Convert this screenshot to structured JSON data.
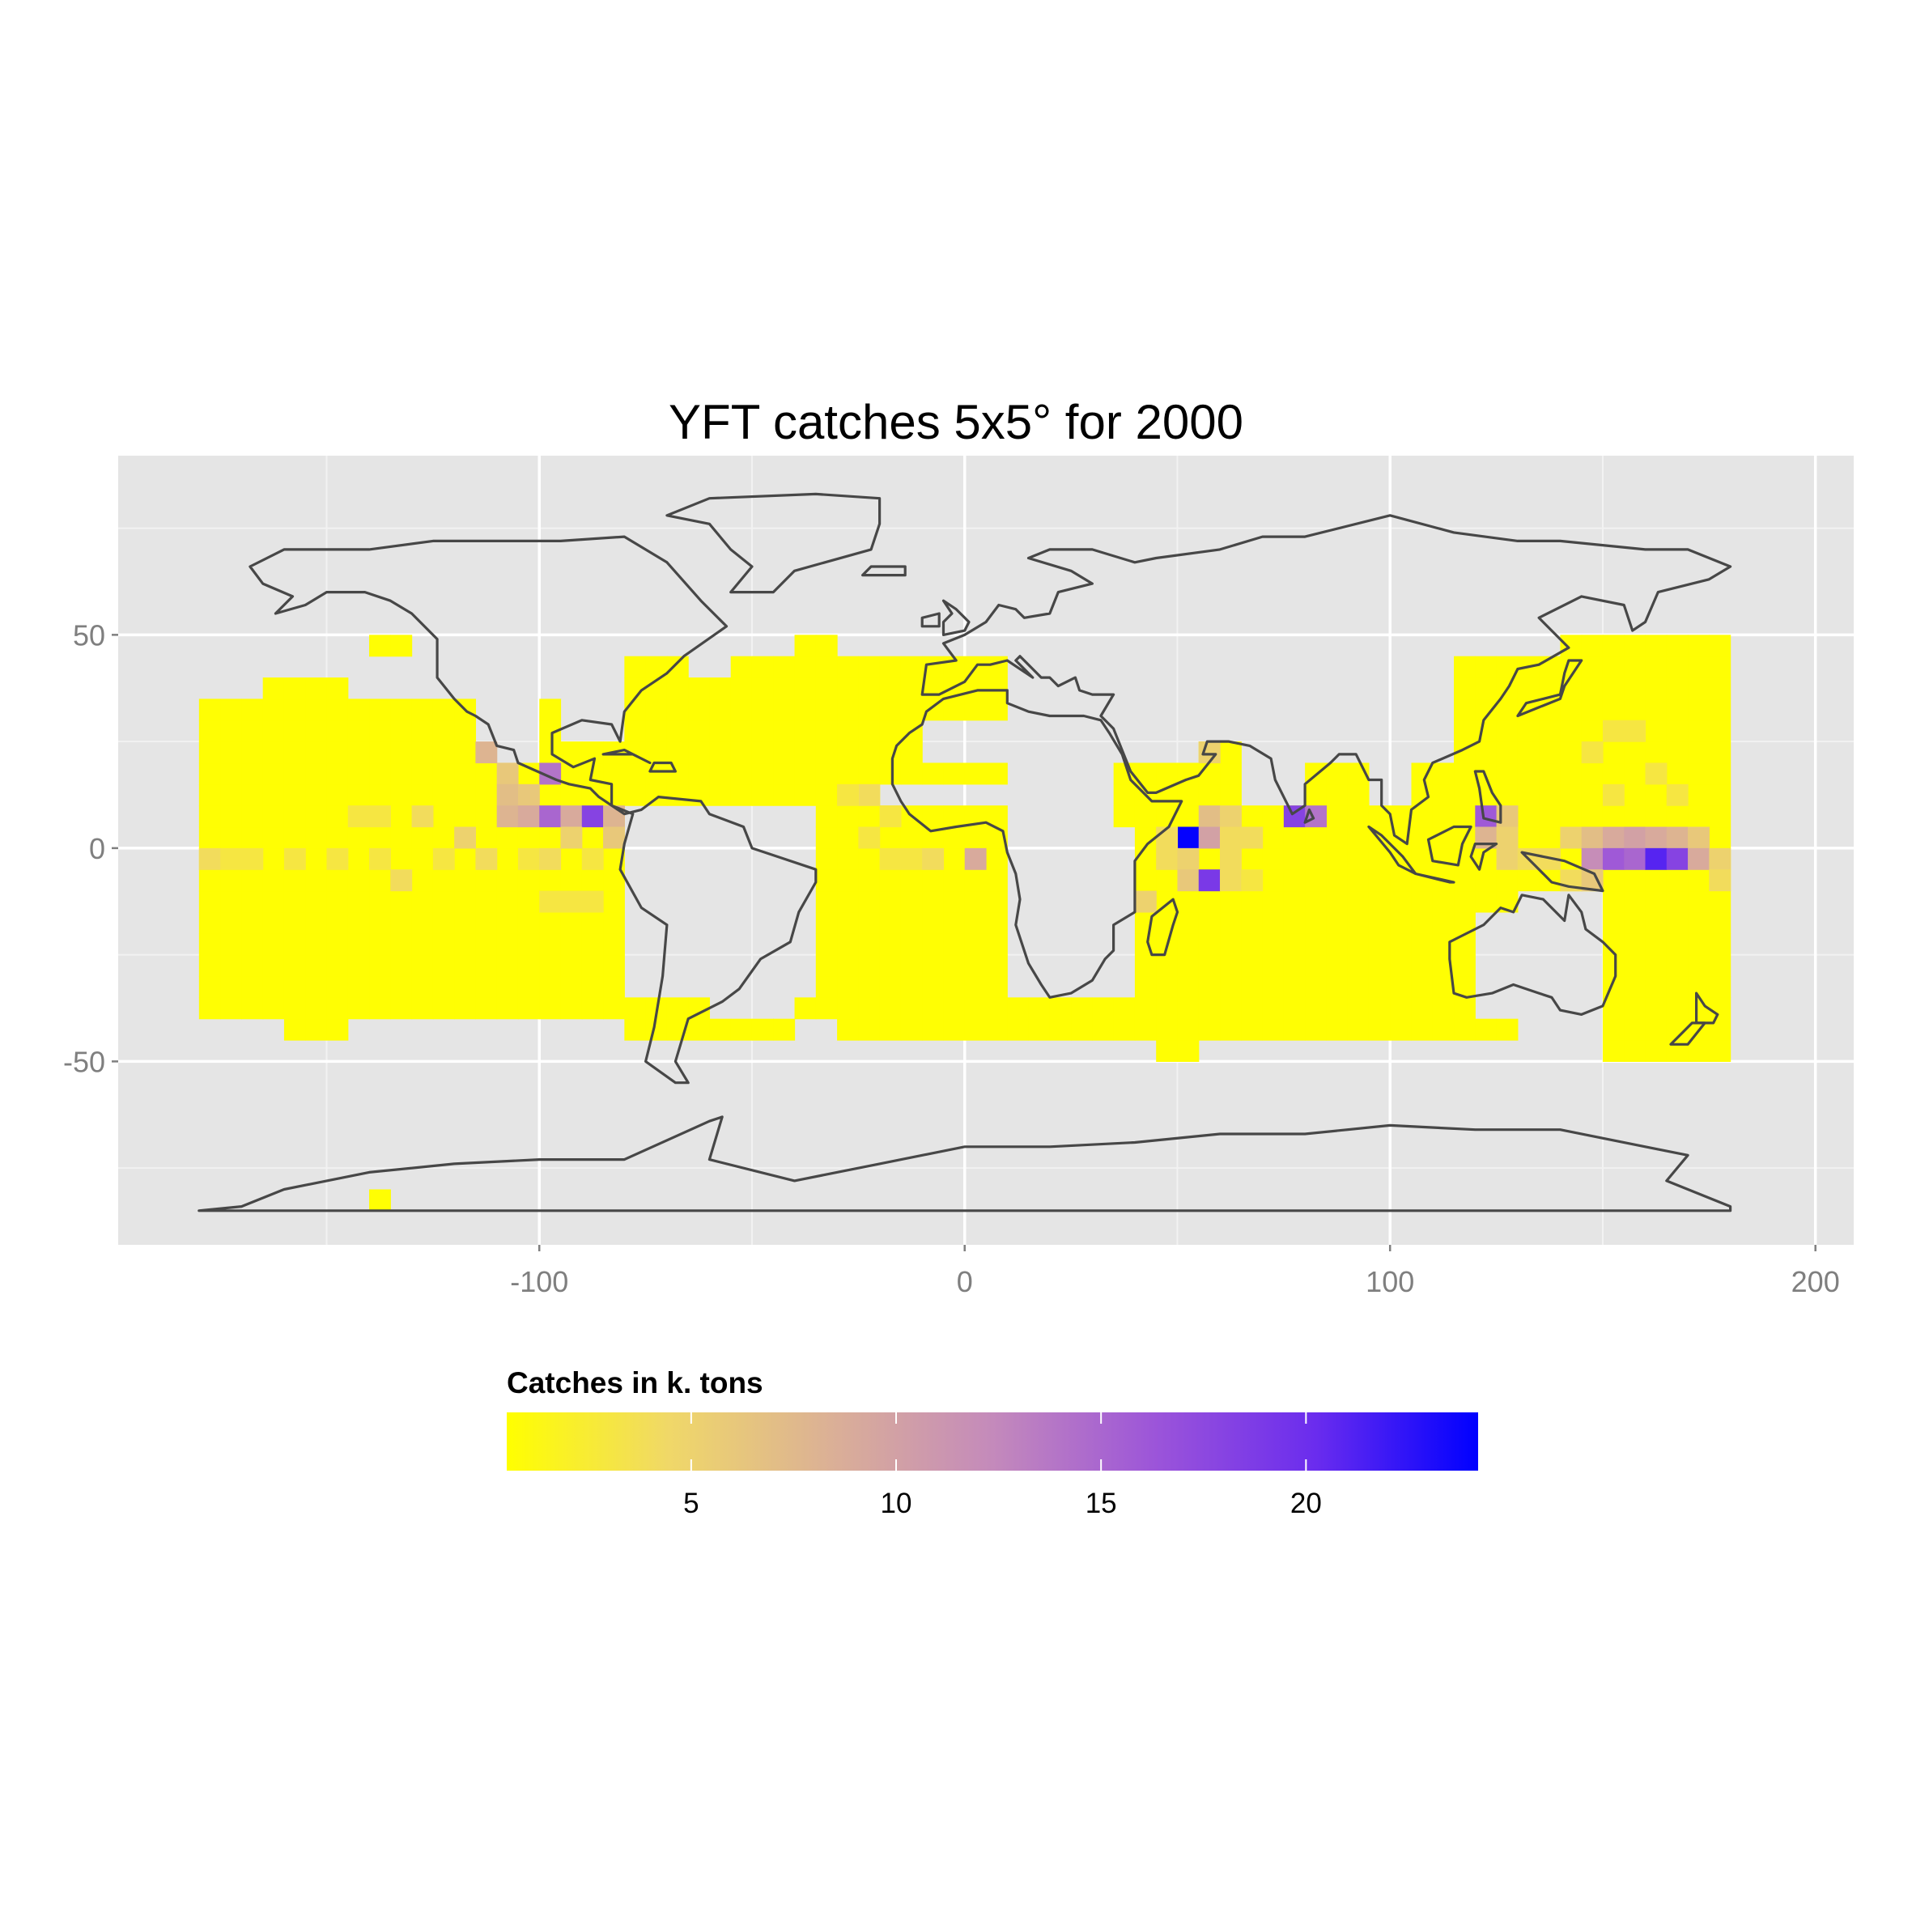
{
  "title": "YFT catches 5x5° for 2000",
  "legend": {
    "title": "Catches in k. tons",
    "breaks": [
      5,
      10,
      15,
      20
    ],
    "min": 0.5,
    "max": 24.2,
    "colors": [
      "#FFFF00",
      "#F0D868",
      "#DBB096",
      "#C48ABB",
      "#9C55D9",
      "#6A2CEE",
      "#0000FF"
    ]
  },
  "chart_data": {
    "type": "heatmap",
    "title": "YFT catches 5x5° for 2000",
    "xlabel": "",
    "ylabel": "",
    "x_ticks": [
      -100,
      0,
      100,
      200
    ],
    "y_ticks": [
      -50,
      0,
      50
    ],
    "xlim": [
      -199,
      209
    ],
    "ylim": [
      -93,
      92
    ],
    "grid": true,
    "legend_position": "bottom",
    "cell_size_deg": 5,
    "background_level": 0.6,
    "cells": [
      {
        "lon": -112.5,
        "lat": 22.5,
        "value": 8
      },
      {
        "lon": -107.5,
        "lat": 17.5,
        "value": 6
      },
      {
        "lon": -97.5,
        "lat": 17.5,
        "value": 14
      },
      {
        "lon": -107.5,
        "lat": 12.5,
        "value": 7
      },
      {
        "lon": -102.5,
        "lat": 12.5,
        "value": 6
      },
      {
        "lon": -107.5,
        "lat": 7.5,
        "value": 8
      },
      {
        "lon": -102.5,
        "lat": 7.5,
        "value": 9
      },
      {
        "lon": -97.5,
        "lat": 7.5,
        "value": 15
      },
      {
        "lon": -92.5,
        "lat": 7.5,
        "value": 9
      },
      {
        "lon": -87.5,
        "lat": 7.5,
        "value": 18
      },
      {
        "lon": -82.5,
        "lat": 7.5,
        "value": 8
      },
      {
        "lon": -82.5,
        "lat": 2.5,
        "value": 6
      },
      {
        "lon": -92.5,
        "lat": 2.5,
        "value": 5
      },
      {
        "lon": -117.5,
        "lat": 2.5,
        "value": 5
      },
      {
        "lon": -127.5,
        "lat": 7.5,
        "value": 4
      },
      {
        "lon": -137.5,
        "lat": 7.5,
        "value": 3
      },
      {
        "lon": -142.5,
        "lat": 7.5,
        "value": 3
      },
      {
        "lon": -177.5,
        "lat": -2.5,
        "value": 4
      },
      {
        "lon": -172.5,
        "lat": -2.5,
        "value": 3
      },
      {
        "lon": -167.5,
        "lat": -2.5,
        "value": 3
      },
      {
        "lon": -157.5,
        "lat": -2.5,
        "value": 3
      },
      {
        "lon": -147.5,
        "lat": -2.5,
        "value": 3
      },
      {
        "lon": -137.5,
        "lat": -2.5,
        "value": 3
      },
      {
        "lon": -132.5,
        "lat": -7.5,
        "value": 4
      },
      {
        "lon": -122.5,
        "lat": -2.5,
        "value": 3
      },
      {
        "lon": -112.5,
        "lat": -2.5,
        "value": 4
      },
      {
        "lon": -102.5,
        "lat": -2.5,
        "value": 3
      },
      {
        "lon": -97.5,
        "lat": -2.5,
        "value": 4
      },
      {
        "lon": -87.5,
        "lat": -2.5,
        "value": 3
      },
      {
        "lon": -97.5,
        "lat": -12.5,
        "value": 3
      },
      {
        "lon": -92.5,
        "lat": -12.5,
        "value": 3
      },
      {
        "lon": -87.5,
        "lat": -12.5,
        "value": 3
      },
      {
        "lon": -22.5,
        "lat": 12.5,
        "value": 4
      },
      {
        "lon": -27.5,
        "lat": 12.5,
        "value": 3
      },
      {
        "lon": -17.5,
        "lat": 7.5,
        "value": 3
      },
      {
        "lon": -22.5,
        "lat": 2.5,
        "value": 3
      },
      {
        "lon": -17.5,
        "lat": -2.5,
        "value": 3
      },
      {
        "lon": -12.5,
        "lat": -2.5,
        "value": 3
      },
      {
        "lon": -7.5,
        "lat": -2.5,
        "value": 4
      },
      {
        "lon": 2.5,
        "lat": -2.5,
        "value": 9
      },
      {
        "lon": 57.5,
        "lat": 22.5,
        "value": 5
      },
      {
        "lon": 57.5,
        "lat": 7.5,
        "value": 7
      },
      {
        "lon": 62.5,
        "lat": 7.5,
        "value": 5
      },
      {
        "lon": 52.5,
        "lat": 2.5,
        "value": 24
      },
      {
        "lon": 57.5,
        "lat": 2.5,
        "value": 10
      },
      {
        "lon": 47.5,
        "lat": 2.5,
        "value": 4
      },
      {
        "lon": 62.5,
        "lat": 2.5,
        "value": 4
      },
      {
        "lon": 67.5,
        "lat": 2.5,
        "value": 4
      },
      {
        "lon": 47.5,
        "lat": -2.5,
        "value": 4
      },
      {
        "lon": 52.5,
        "lat": -2.5,
        "value": 5
      },
      {
        "lon": 62.5,
        "lat": -2.5,
        "value": 4
      },
      {
        "lon": 52.5,
        "lat": -7.5,
        "value": 6
      },
      {
        "lon": 57.5,
        "lat": -7.5,
        "value": 19
      },
      {
        "lon": 62.5,
        "lat": -7.5,
        "value": 4
      },
      {
        "lon": 67.5,
        "lat": -7.5,
        "value": 3
      },
      {
        "lon": 42.5,
        "lat": -12.5,
        "value": 5
      },
      {
        "lon": 77.5,
        "lat": 7.5,
        "value": 18
      },
      {
        "lon": 82.5,
        "lat": 7.5,
        "value": 14
      },
      {
        "lon": 122.5,
        "lat": 7.5,
        "value": 16
      },
      {
        "lon": 127.5,
        "lat": 7.5,
        "value": 6
      },
      {
        "lon": 122.5,
        "lat": 2.5,
        "value": 8
      },
      {
        "lon": 127.5,
        "lat": 2.5,
        "value": 5
      },
      {
        "lon": 127.5,
        "lat": -2.5,
        "value": 5
      },
      {
        "lon": 132.5,
        "lat": -2.5,
        "value": 4
      },
      {
        "lon": 137.5,
        "lat": -2.5,
        "value": 4
      },
      {
        "lon": 142.5,
        "lat": 2.5,
        "value": 5
      },
      {
        "lon": 147.5,
        "lat": 2.5,
        "value": 7
      },
      {
        "lon": 152.5,
        "lat": 2.5,
        "value": 9
      },
      {
        "lon": 157.5,
        "lat": 2.5,
        "value": 10
      },
      {
        "lon": 162.5,
        "lat": 2.5,
        "value": 9
      },
      {
        "lon": 167.5,
        "lat": 2.5,
        "value": 8
      },
      {
        "lon": 172.5,
        "lat": 2.5,
        "value": 6
      },
      {
        "lon": 147.5,
        "lat": -2.5,
        "value": 12
      },
      {
        "lon": 152.5,
        "lat": -2.5,
        "value": 16
      },
      {
        "lon": 157.5,
        "lat": -2.5,
        "value": 15
      },
      {
        "lon": 162.5,
        "lat": -2.5,
        "value": 21
      },
      {
        "lon": 167.5,
        "lat": -2.5,
        "value": 18
      },
      {
        "lon": 172.5,
        "lat": -2.5,
        "value": 9
      },
      {
        "lon": 177.5,
        "lat": -2.5,
        "value": 5
      },
      {
        "lon": 142.5,
        "lat": -7.5,
        "value": 4
      },
      {
        "lon": 147.5,
        "lat": -7.5,
        "value": 6
      },
      {
        "lon": 177.5,
        "lat": -7.5,
        "value": 4
      },
      {
        "lon": 152.5,
        "lat": 27.5,
        "value": 3
      },
      {
        "lon": 157.5,
        "lat": 27.5,
        "value": 3
      },
      {
        "lon": 147.5,
        "lat": 22.5,
        "value": 3
      },
      {
        "lon": 162.5,
        "lat": 17.5,
        "value": 3
      },
      {
        "lon": 152.5,
        "lat": 12.5,
        "value": 3
      },
      {
        "lon": 167.5,
        "lat": 12.5,
        "value": 3
      }
    ]
  }
}
